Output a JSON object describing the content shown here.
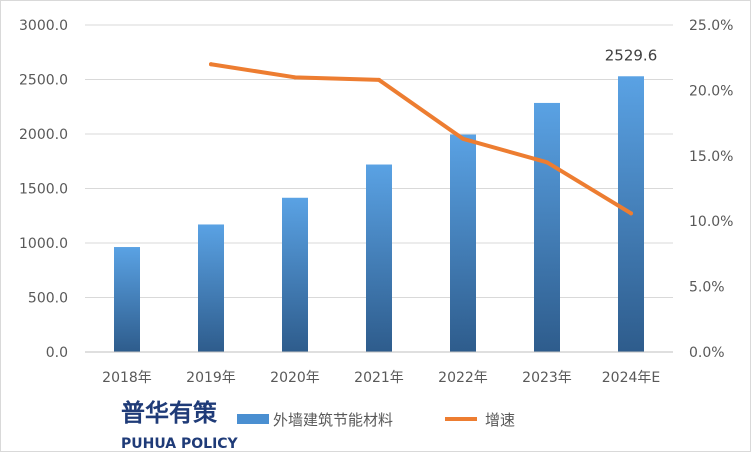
{
  "chart_data": {
    "type": "bar",
    "categories": [
      "2018年",
      "2019年",
      "2020年",
      "2021年",
      "2022年",
      "2023年",
      "2024年E"
    ],
    "series": [
      {
        "name": "外墙建筑节能材料",
        "type": "bar",
        "axis": "left",
        "values": [
          963,
          1170,
          1415,
          1720,
          1995,
          2285,
          2529.6
        ],
        "color": "#4a8fd1"
      },
      {
        "name": "增速",
        "type": "line",
        "axis": "right",
        "values": [
          null,
          0.22,
          0.21,
          0.208,
          0.163,
          0.145,
          0.106
        ],
        "color": "#ed7d31"
      }
    ],
    "left_axis": {
      "ylim": [
        0,
        3000
      ],
      "ticks": [
        "0.0",
        "500.0",
        "1000.0",
        "1500.0",
        "2000.0",
        "2500.0",
        "3000.0"
      ]
    },
    "right_axis": {
      "ylim": [
        0,
        0.25
      ],
      "ticks": [
        "0.0%",
        "5.0%",
        "10.0%",
        "15.0%",
        "20.0%",
        "25.0%"
      ]
    },
    "data_labels": [
      {
        "series": 0,
        "index": 6,
        "text": "2529.6"
      }
    ],
    "grid": true,
    "legend_position": "bottom",
    "title": "",
    "xlabel": "",
    "ylabel": ""
  },
  "logo": {
    "cn": "普华有策",
    "en": "PUHUA POLICY"
  }
}
